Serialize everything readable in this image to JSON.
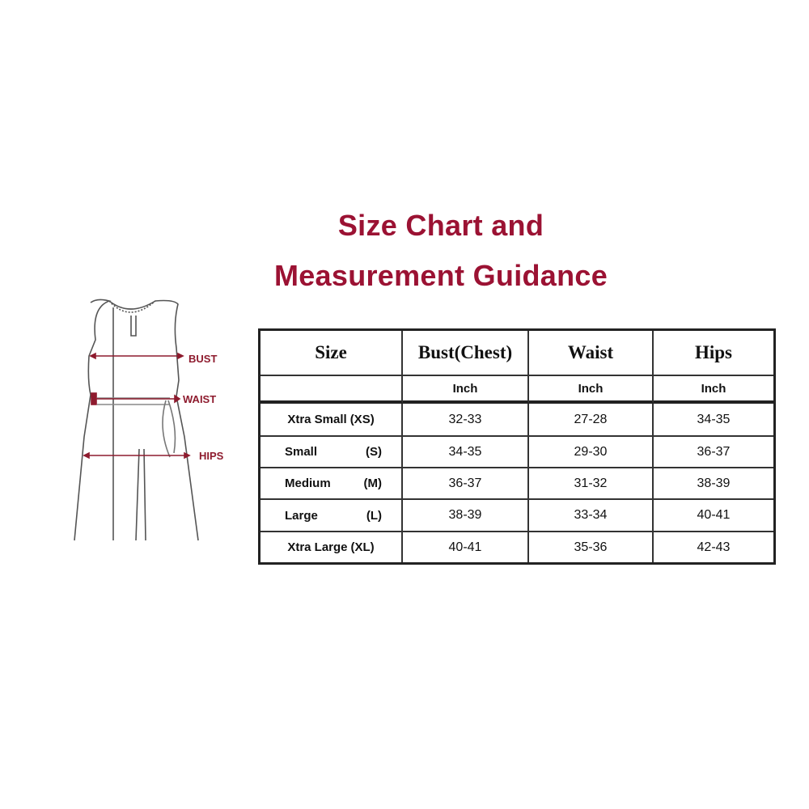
{
  "title": {
    "line1": "Size Chart and",
    "line2": "Measurement Guidance"
  },
  "colors": {
    "title": "#9b1233",
    "measure_labels": "#8e1b2e",
    "grid": "#222222"
  },
  "diagram": {
    "labels": {
      "bust": "BUST",
      "waist": "WAIST",
      "hips": "HIPS"
    }
  },
  "table": {
    "headers": [
      "Size",
      "Bust(Chest)",
      "Waist",
      "Hips"
    ],
    "units": [
      "",
      "Inch",
      "Inch",
      "Inch"
    ],
    "rows": [
      {
        "size": "Xtra Small",
        "code": "(XS)",
        "bust": "32-33",
        "waist": "27-28",
        "hips": "34-35"
      },
      {
        "size": "Small",
        "code": "(S)",
        "bust": "34-35",
        "waist": "29-30",
        "hips": "36-37"
      },
      {
        "size": "Medium",
        "code": "(M)",
        "bust": "36-37",
        "waist": "31-32",
        "hips": "38-39"
      },
      {
        "size": "Large",
        "code": "(L)",
        "bust": "38-39",
        "waist": "33-34",
        "hips": "40-41"
      },
      {
        "size": "Xtra Large",
        "code": "(XL)",
        "bust": "40-41",
        "waist": "35-36",
        "hips": "42-43"
      }
    ]
  }
}
